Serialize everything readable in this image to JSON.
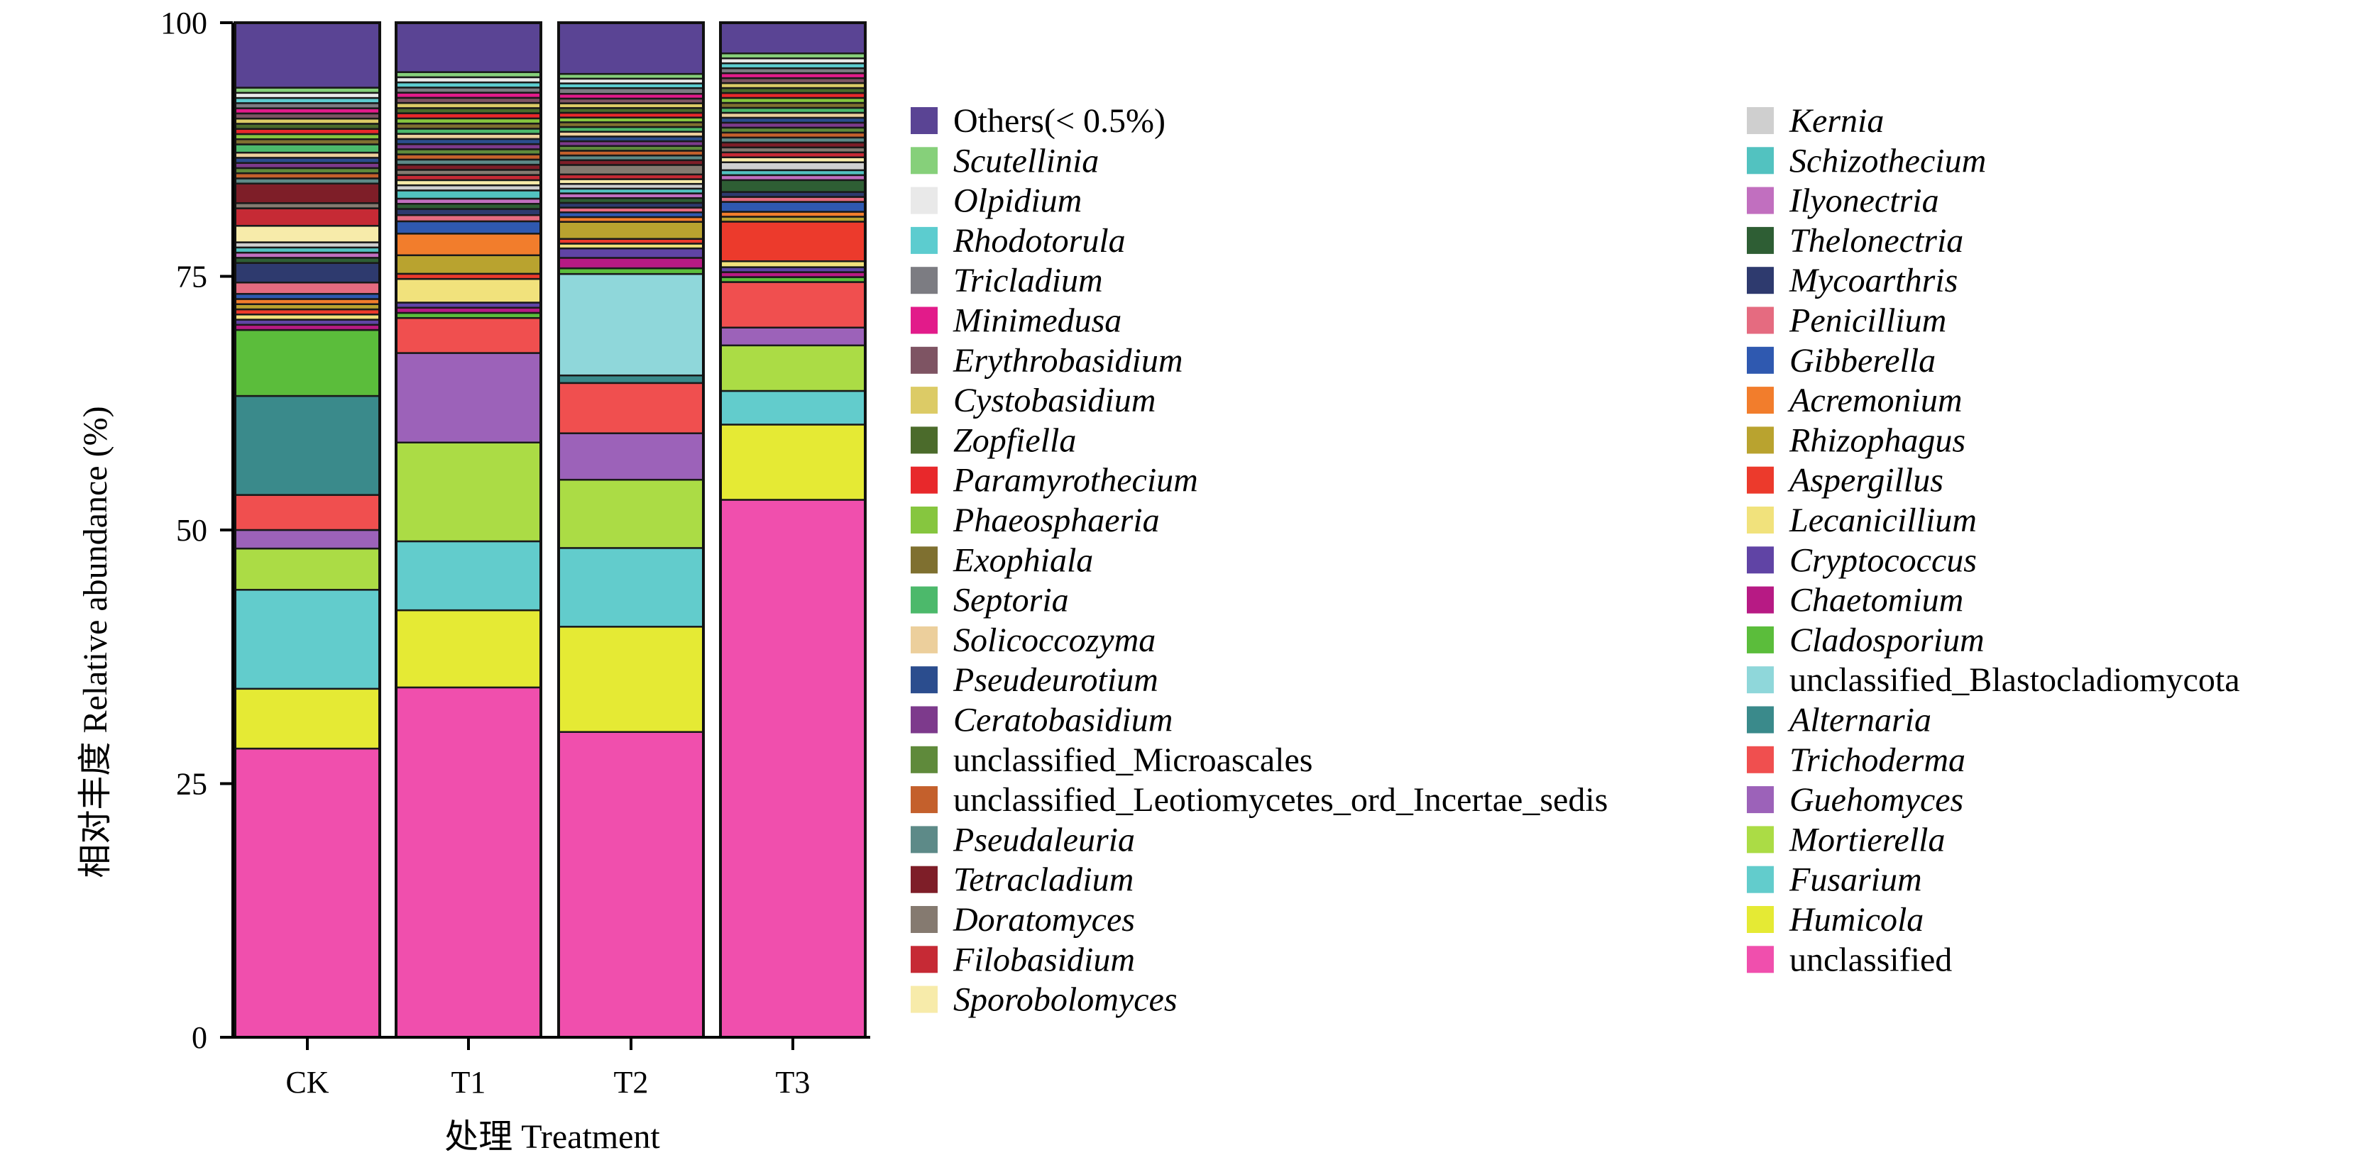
{
  "chart_data": {
    "type": "bar",
    "stacked": true,
    "xlabel": "处理 Treatment",
    "ylabel": "相对丰度 Relative abundance (%)",
    "ylim": [
      0,
      100
    ],
    "yticks": [
      0,
      25,
      50,
      75,
      100
    ],
    "categories": [
      "CK",
      "T1",
      "T2",
      "T3"
    ],
    "legend_position": "right",
    "series": [
      {
        "name": "unclassified",
        "italic": false,
        "color": "#f04fad",
        "values": [
          28.0,
          34.0,
          32.2,
          54.3
        ]
      },
      {
        "name": "Humicola",
        "italic": true,
        "color": "#e5ea34",
        "values": [
          5.8,
          7.5,
          11.1,
          7.6
        ]
      },
      {
        "name": "Fusarium",
        "italic": true,
        "color": "#62cccc",
        "values": [
          9.6,
          6.7,
          8.3,
          3.4
        ]
      },
      {
        "name": "Mortierella",
        "italic": true,
        "color": "#abdc45",
        "values": [
          4.0,
          9.6,
          7.2,
          4.6
        ]
      },
      {
        "name": "Guehomyces",
        "italic": true,
        "color": "#9c62b9",
        "values": [
          1.8,
          8.7,
          4.9,
          1.8
        ]
      },
      {
        "name": "Trichoderma",
        "italic": true,
        "color": "#f04f4f",
        "values": [
          3.4,
          3.4,
          5.3,
          4.6
        ]
      },
      {
        "name": "Alternaria",
        "italic": true,
        "color": "#3a8a8b",
        "values": [
          9.6,
          0.0,
          0.8,
          0.0
        ]
      },
      {
        "name": "unclassified_Blastocladiomycota",
        "italic": false,
        "color": "#8fd7da",
        "values": [
          0.0,
          0.0,
          10.7,
          0.0
        ]
      },
      {
        "name": "Cladosporium",
        "italic": true,
        "color": "#5bbd3b",
        "values": [
          6.4,
          0.5,
          0.6,
          0.5
        ]
      },
      {
        "name": "Chaetomium",
        "italic": true,
        "color": "#b71a84",
        "values": [
          0.5,
          0.5,
          1.1,
          0.5
        ]
      },
      {
        "name": "Cryptococcus",
        "italic": true,
        "color": "#6044a5",
        "values": [
          0.5,
          0.5,
          1.0,
          0.5
        ]
      },
      {
        "name": "Lecanicillium",
        "italic": true,
        "color": "#f1e27c",
        "values": [
          0.5,
          2.3,
          0.5,
          0.6
        ]
      },
      {
        "name": "Aspergillus",
        "italic": true,
        "color": "#ec3a2c",
        "values": [
          0.5,
          0.5,
          0.5,
          4.0
        ]
      },
      {
        "name": "Rhizophagus",
        "italic": true,
        "color": "#b9a32f",
        "values": [
          0.5,
          1.8,
          1.8,
          0.5
        ]
      },
      {
        "name": "Acremonium",
        "italic": true,
        "color": "#f27d2c",
        "values": [
          0.5,
          2.1,
          0.5,
          0.5
        ]
      },
      {
        "name": "Gibberella",
        "italic": true,
        "color": "#2f59b0",
        "values": [
          0.5,
          1.2,
          0.5,
          1.0
        ]
      },
      {
        "name": "Penicillium",
        "italic": true,
        "color": "#e56b80",
        "values": [
          1.1,
          0.6,
          0.5,
          0.5
        ]
      },
      {
        "name": "Mycoarthris",
        "italic": true,
        "color": "#2e3a6e",
        "values": [
          1.9,
          0.6,
          0.5,
          0.5
        ]
      },
      {
        "name": "Thelonectria",
        "italic": true,
        "color": "#2e5e34",
        "values": [
          0.5,
          0.5,
          0.5,
          1.2
        ]
      },
      {
        "name": "Ilyonectria",
        "italic": true,
        "color": "#c16fbf",
        "values": [
          0.5,
          0.5,
          0.5,
          0.5
        ]
      },
      {
        "name": "Schizothecium",
        "italic": true,
        "color": "#52c2c0",
        "values": [
          0.5,
          0.8,
          0.5,
          0.5
        ]
      },
      {
        "name": "Kernia",
        "italic": true,
        "color": "#cfcfcf",
        "values": [
          0.5,
          0.5,
          0.5,
          0.8
        ]
      },
      {
        "name": "Sporobolomyces",
        "italic": true,
        "color": "#f7ebaa",
        "values": [
          1.6,
          0.5,
          0.5,
          0.5
        ]
      },
      {
        "name": "Filobasidium",
        "italic": true,
        "color": "#c62a35",
        "values": [
          1.7,
          0.5,
          0.5,
          0.5
        ]
      },
      {
        "name": "Doratomyces",
        "italic": true,
        "color": "#857a70",
        "values": [
          0.5,
          0.5,
          1.0,
          0.5
        ]
      },
      {
        "name": "Tetracladium",
        "italic": true,
        "color": "#7e1e28",
        "values": [
          1.9,
          0.5,
          0.5,
          0.5
        ]
      },
      {
        "name": "Pseudaleuria",
        "italic": true,
        "color": "#5d8a88",
        "values": [
          0.5,
          0.5,
          0.5,
          0.5
        ]
      },
      {
        "name": "unclassified_Leotiomycetes_ord_Incertae_sedis",
        "italic": false,
        "color": "#c4602c",
        "values": [
          0.5,
          0.5,
          0.5,
          0.5
        ]
      },
      {
        "name": "unclassified_Microascales",
        "italic": false,
        "color": "#5f8a3b",
        "values": [
          0.5,
          0.5,
          0.5,
          0.5
        ]
      },
      {
        "name": "Ceratobasidium",
        "italic": true,
        "color": "#7d3a8c",
        "values": [
          0.5,
          0.5,
          0.5,
          0.5
        ]
      },
      {
        "name": "Pseudeurotium",
        "italic": true,
        "color": "#2b4d8e",
        "values": [
          0.5,
          0.5,
          0.5,
          0.5
        ]
      },
      {
        "name": "Solicoccozyma",
        "italic": true,
        "color": "#eccf9c",
        "values": [
          0.5,
          0.5,
          0.5,
          0.5
        ]
      },
      {
        "name": "Septoria",
        "italic": true,
        "color": "#4cb96b",
        "values": [
          0.8,
          0.5,
          0.5,
          0.5
        ]
      },
      {
        "name": "Exophiala",
        "italic": true,
        "color": "#7f7030",
        "values": [
          0.5,
          0.5,
          0.5,
          0.5
        ]
      },
      {
        "name": "Phaeosphaeria",
        "italic": true,
        "color": "#86c63f",
        "values": [
          0.5,
          0.5,
          0.5,
          0.5
        ]
      },
      {
        "name": "Paramyrothecium",
        "italic": true,
        "color": "#e8282b",
        "values": [
          0.5,
          0.5,
          0.5,
          0.5
        ]
      },
      {
        "name": "Zopfiella",
        "italic": true,
        "color": "#4b6b2b",
        "values": [
          0.5,
          0.5,
          0.5,
          0.5
        ]
      },
      {
        "name": "Cystobasidium",
        "italic": true,
        "color": "#dccb66",
        "values": [
          0.5,
          0.5,
          0.5,
          0.5
        ]
      },
      {
        "name": "Erythrobasidium",
        "italic": true,
        "color": "#7e5463",
        "values": [
          0.5,
          0.5,
          0.5,
          0.5
        ]
      },
      {
        "name": "Minimedusa",
        "italic": true,
        "color": "#e21b8a",
        "values": [
          0.5,
          0.5,
          0.5,
          0.5
        ]
      },
      {
        "name": "Tricladium",
        "italic": true,
        "color": "#7c7c82",
        "values": [
          0.5,
          0.5,
          0.6,
          0.5
        ]
      },
      {
        "name": "Rhodotorula",
        "italic": true,
        "color": "#5ccccf",
        "values": [
          0.5,
          0.5,
          0.5,
          0.5
        ]
      },
      {
        "name": "Olpidium",
        "italic": true,
        "color": "#e9e9e9",
        "values": [
          0.5,
          0.5,
          0.5,
          0.5
        ]
      },
      {
        "name": "Scutellinia",
        "italic": true,
        "color": "#86d07a",
        "values": [
          0.5,
          0.5,
          0.5,
          0.5
        ]
      },
      {
        "name": "Others(< 0.5%)",
        "italic": false,
        "color": "#5a4494",
        "values": [
          6.3,
          4.8,
          5.4,
          3.1
        ]
      }
    ],
    "legend_col1": [
      "Others(< 0.5%)",
      "Scutellinia",
      "Olpidium",
      "Rhodotorula",
      "Tricladium",
      "Minimedusa",
      "Erythrobasidium",
      "Cystobasidium",
      "Zopfiella",
      "Paramyrothecium",
      "Phaeosphaeria",
      "Exophiala",
      "Septoria",
      "Solicoccozyma",
      "Pseudeurotium",
      "Ceratobasidium",
      "unclassified_Microascales",
      "unclassified_Leotiomycetes_ord_Incertae_sedis",
      "Pseudaleuria",
      "Tetracladium",
      "Doratomyces",
      "Filobasidium",
      "Sporobolomyces"
    ],
    "legend_col2": [
      "Kernia",
      "Schizothecium",
      "Ilyonectria",
      "Thelonectria",
      "Mycoarthris",
      "Penicillium",
      "Gibberella",
      "Acremonium",
      "Rhizophagus",
      "Aspergillus",
      "Lecanicillium",
      "Cryptococcus",
      "Chaetomium",
      "Cladosporium",
      "unclassified_Blastocladiomycota",
      "Alternaria",
      "Trichoderma",
      "Guehomyces",
      "Mortierella",
      "Fusarium",
      "Humicola",
      "unclassified"
    ]
  }
}
